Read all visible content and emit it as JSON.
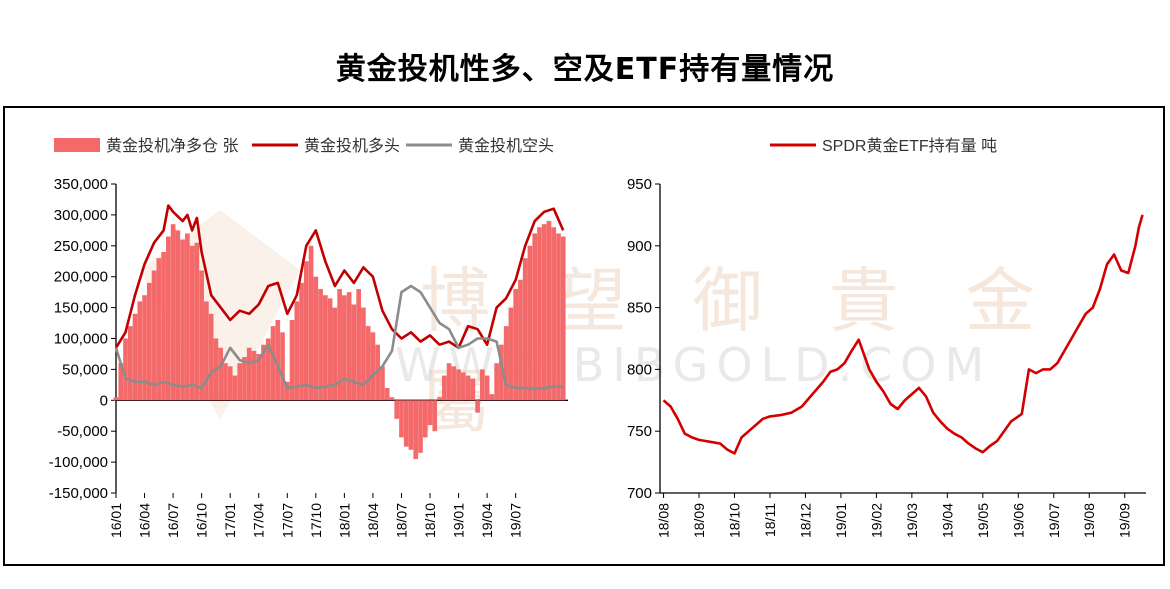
{
  "title": "黄金投机性多、空及ETF持有量情况",
  "watermark": {
    "cn": "博 望 御 貴 金 屬",
    "en": "WWW.BIBGOLD.COM"
  },
  "colors": {
    "net_long": "#f46a6a",
    "long": "#c00000",
    "short": "#8c8c8c",
    "spdr": "#d40000",
    "axis": "#000000"
  },
  "chart_data": [
    {
      "type": "bar+line",
      "title": "",
      "legend": [
        "黄金投机净多仓 张",
        "黄金投机多头",
        "黄金投机空头"
      ],
      "legend_position": "top",
      "ylim": [
        -150000,
        350000
      ],
      "yticks": [
        "350,000",
        "300,000",
        "250,000",
        "200,000",
        "150,000",
        "100,000",
        "50,000",
        "0",
        "-50,000",
        "-100,000",
        "-150,000"
      ],
      "ytick_values": [
        350000,
        300000,
        250000,
        200000,
        150000,
        100000,
        50000,
        0,
        -50000,
        -100000,
        -150000
      ],
      "xticks": [
        "16/01",
        "16/04",
        "16/07",
        "16/10",
        "17/01",
        "17/04",
        "17/07",
        "17/10",
        "18/01",
        "18/04",
        "18/07",
        "18/10",
        "19/01",
        "19/04",
        "19/07"
      ],
      "x_months": [
        0,
        3,
        6,
        9,
        12,
        15,
        18,
        21,
        24,
        27,
        30,
        33,
        36,
        39,
        42
      ],
      "x_range_months": [
        0,
        47.5
      ],
      "series": [
        {
          "name": "黄金投机多头",
          "kind": "line",
          "x": [
            0,
            1,
            2,
            3,
            4,
            5,
            5.5,
            6,
            7,
            7.5,
            8,
            8.5,
            9,
            10,
            11,
            12,
            13,
            14,
            15,
            16,
            17,
            18,
            19,
            20,
            21,
            22,
            23,
            24,
            25,
            26,
            27,
            28,
            29,
            30,
            31,
            32,
            33,
            34,
            35,
            36,
            37,
            38,
            39,
            40,
            41,
            42,
            43,
            44,
            45,
            46,
            47
          ],
          "y": [
            85000,
            110000,
            170000,
            220000,
            255000,
            275000,
            315000,
            305000,
            290000,
            300000,
            275000,
            295000,
            240000,
            170000,
            150000,
            130000,
            145000,
            140000,
            155000,
            185000,
            190000,
            140000,
            170000,
            250000,
            275000,
            225000,
            185000,
            210000,
            190000,
            215000,
            200000,
            145000,
            115000,
            100000,
            110000,
            95000,
            105000,
            90000,
            95000,
            85000,
            120000,
            115000,
            90000,
            150000,
            165000,
            195000,
            250000,
            290000,
            305000,
            310000,
            275000
          ]
        },
        {
          "name": "黄金投机空头",
          "kind": "line",
          "x": [
            0,
            1,
            2,
            3,
            4,
            5,
            6,
            7,
            8,
            9,
            10,
            11,
            12,
            13,
            14,
            15,
            16,
            17,
            18,
            19,
            20,
            21,
            22,
            23,
            24,
            25,
            26,
            27,
            28,
            29,
            30,
            31,
            32,
            33,
            34,
            35,
            36,
            37,
            38,
            39,
            40,
            41,
            42,
            43,
            44,
            45,
            46,
            47
          ],
          "y": [
            85000,
            35000,
            30000,
            30000,
            25000,
            30000,
            25000,
            22000,
            25000,
            20000,
            45000,
            55000,
            85000,
            65000,
            60000,
            65000,
            90000,
            55000,
            20000,
            22000,
            25000,
            20000,
            22000,
            25000,
            35000,
            30000,
            25000,
            40000,
            55000,
            80000,
            175000,
            185000,
            175000,
            150000,
            125000,
            115000,
            85000,
            90000,
            100000,
            100000,
            95000,
            25000,
            20000,
            20000,
            18000,
            20000,
            22000,
            22000
          ]
        },
        {
          "name": "黄金投机净多仓 张",
          "kind": "bar",
          "x": [
            0,
            0.5,
            1,
            1.5,
            2,
            2.5,
            3,
            3.5,
            4,
            4.5,
            5,
            5.5,
            6,
            6.5,
            7,
            7.5,
            8,
            8.5,
            9,
            9.5,
            10,
            10.5,
            11,
            11.5,
            12,
            12.5,
            13,
            13.5,
            14,
            14.5,
            15,
            15.5,
            16,
            16.5,
            17,
            17.5,
            18,
            18.5,
            19,
            19.5,
            20,
            20.5,
            21,
            21.5,
            22,
            22.5,
            23,
            23.5,
            24,
            24.5,
            25,
            25.5,
            26,
            26.5,
            27,
            27.5,
            28,
            28.5,
            29,
            29.5,
            30,
            30.5,
            31,
            31.5,
            32,
            32.5,
            33,
            33.5,
            34,
            34.5,
            35,
            35.5,
            36,
            36.5,
            37,
            37.5,
            38,
            38.5,
            39,
            39.5,
            40,
            40.5,
            41,
            41.5,
            42,
            42.5,
            43,
            43.5,
            44,
            44.5,
            45,
            45.5,
            46,
            46.5,
            47
          ],
          "y": [
            5000,
            60000,
            100000,
            120000,
            140000,
            160000,
            170000,
            190000,
            210000,
            230000,
            240000,
            265000,
            285000,
            275000,
            260000,
            270000,
            250000,
            255000,
            210000,
            160000,
            140000,
            100000,
            85000,
            60000,
            55000,
            40000,
            60000,
            70000,
            85000,
            80000,
            75000,
            90000,
            100000,
            120000,
            130000,
            110000,
            30000,
            130000,
            160000,
            190000,
            225000,
            250000,
            200000,
            180000,
            170000,
            165000,
            150000,
            180000,
            170000,
            175000,
            155000,
            180000,
            150000,
            120000,
            110000,
            90000,
            55000,
            20000,
            5000,
            -30000,
            -60000,
            -75000,
            -80000,
            -95000,
            -85000,
            -60000,
            -40000,
            -50000,
            5000,
            40000,
            60000,
            55000,
            50000,
            45000,
            40000,
            35000,
            -20000,
            50000,
            40000,
            10000,
            60000,
            90000,
            120000,
            150000,
            180000,
            195000,
            230000,
            250000,
            270000,
            280000,
            285000,
            290000,
            280000,
            270000,
            265000
          ]
        }
      ]
    },
    {
      "type": "line",
      "title": "",
      "legend": [
        "SPDR黄金ETF持有量 吨"
      ],
      "legend_position": "top",
      "ylim": [
        700,
        950
      ],
      "yticks": [
        "950",
        "900",
        "850",
        "800",
        "750",
        "700"
      ],
      "ytick_values": [
        950,
        900,
        850,
        800,
        750,
        700
      ],
      "xticks": [
        "18/08",
        "18/09",
        "18/10",
        "18/11",
        "18/12",
        "19/01",
        "19/02",
        "19/03",
        "19/04",
        "19/05",
        "19/06",
        "19/07",
        "19/08",
        "19/09"
      ],
      "x_months": [
        0,
        1,
        2,
        3,
        4,
        5,
        6,
        7,
        8,
        9,
        10,
        11,
        12,
        13
      ],
      "x_range_months": [
        -0.1,
        13.6
      ],
      "series": [
        {
          "name": "SPDR黄金ETF持有量 吨",
          "kind": "line",
          "x": [
            0,
            0.2,
            0.4,
            0.6,
            0.8,
            1,
            1.2,
            1.4,
            1.6,
            1.8,
            2,
            2.2,
            2.4,
            2.6,
            2.8,
            3,
            3.3,
            3.6,
            3.9,
            4.2,
            4.5,
            4.7,
            4.9,
            5.1,
            5.3,
            5.5,
            5.65,
            5.8,
            6,
            6.2,
            6.4,
            6.6,
            6.8,
            7,
            7.2,
            7.4,
            7.6,
            7.8,
            8,
            8.2,
            8.4,
            8.6,
            8.8,
            9,
            9.2,
            9.4,
            9.6,
            9.8,
            10,
            10.1,
            10.3,
            10.5,
            10.7,
            10.9,
            11.1,
            11.3,
            11.5,
            11.7,
            11.9,
            12.1,
            12.3,
            12.5,
            12.7,
            12.9,
            13.1,
            13.3,
            13.4,
            13.5
          ],
          "y": [
            775,
            770,
            760,
            748,
            745,
            743,
            742,
            741,
            740,
            735,
            732,
            745,
            750,
            755,
            760,
            762,
            763,
            765,
            770,
            780,
            790,
            798,
            800,
            805,
            815,
            824,
            812,
            800,
            790,
            782,
            772,
            768,
            775,
            780,
            785,
            778,
            765,
            758,
            752,
            748,
            745,
            740,
            736,
            733,
            738,
            742,
            750,
            758,
            762,
            764,
            800,
            797,
            800,
            800,
            805,
            815,
            825,
            835,
            845,
            850,
            865,
            885,
            893,
            880,
            878,
            900,
            915,
            925
          ]
        }
      ]
    }
  ]
}
